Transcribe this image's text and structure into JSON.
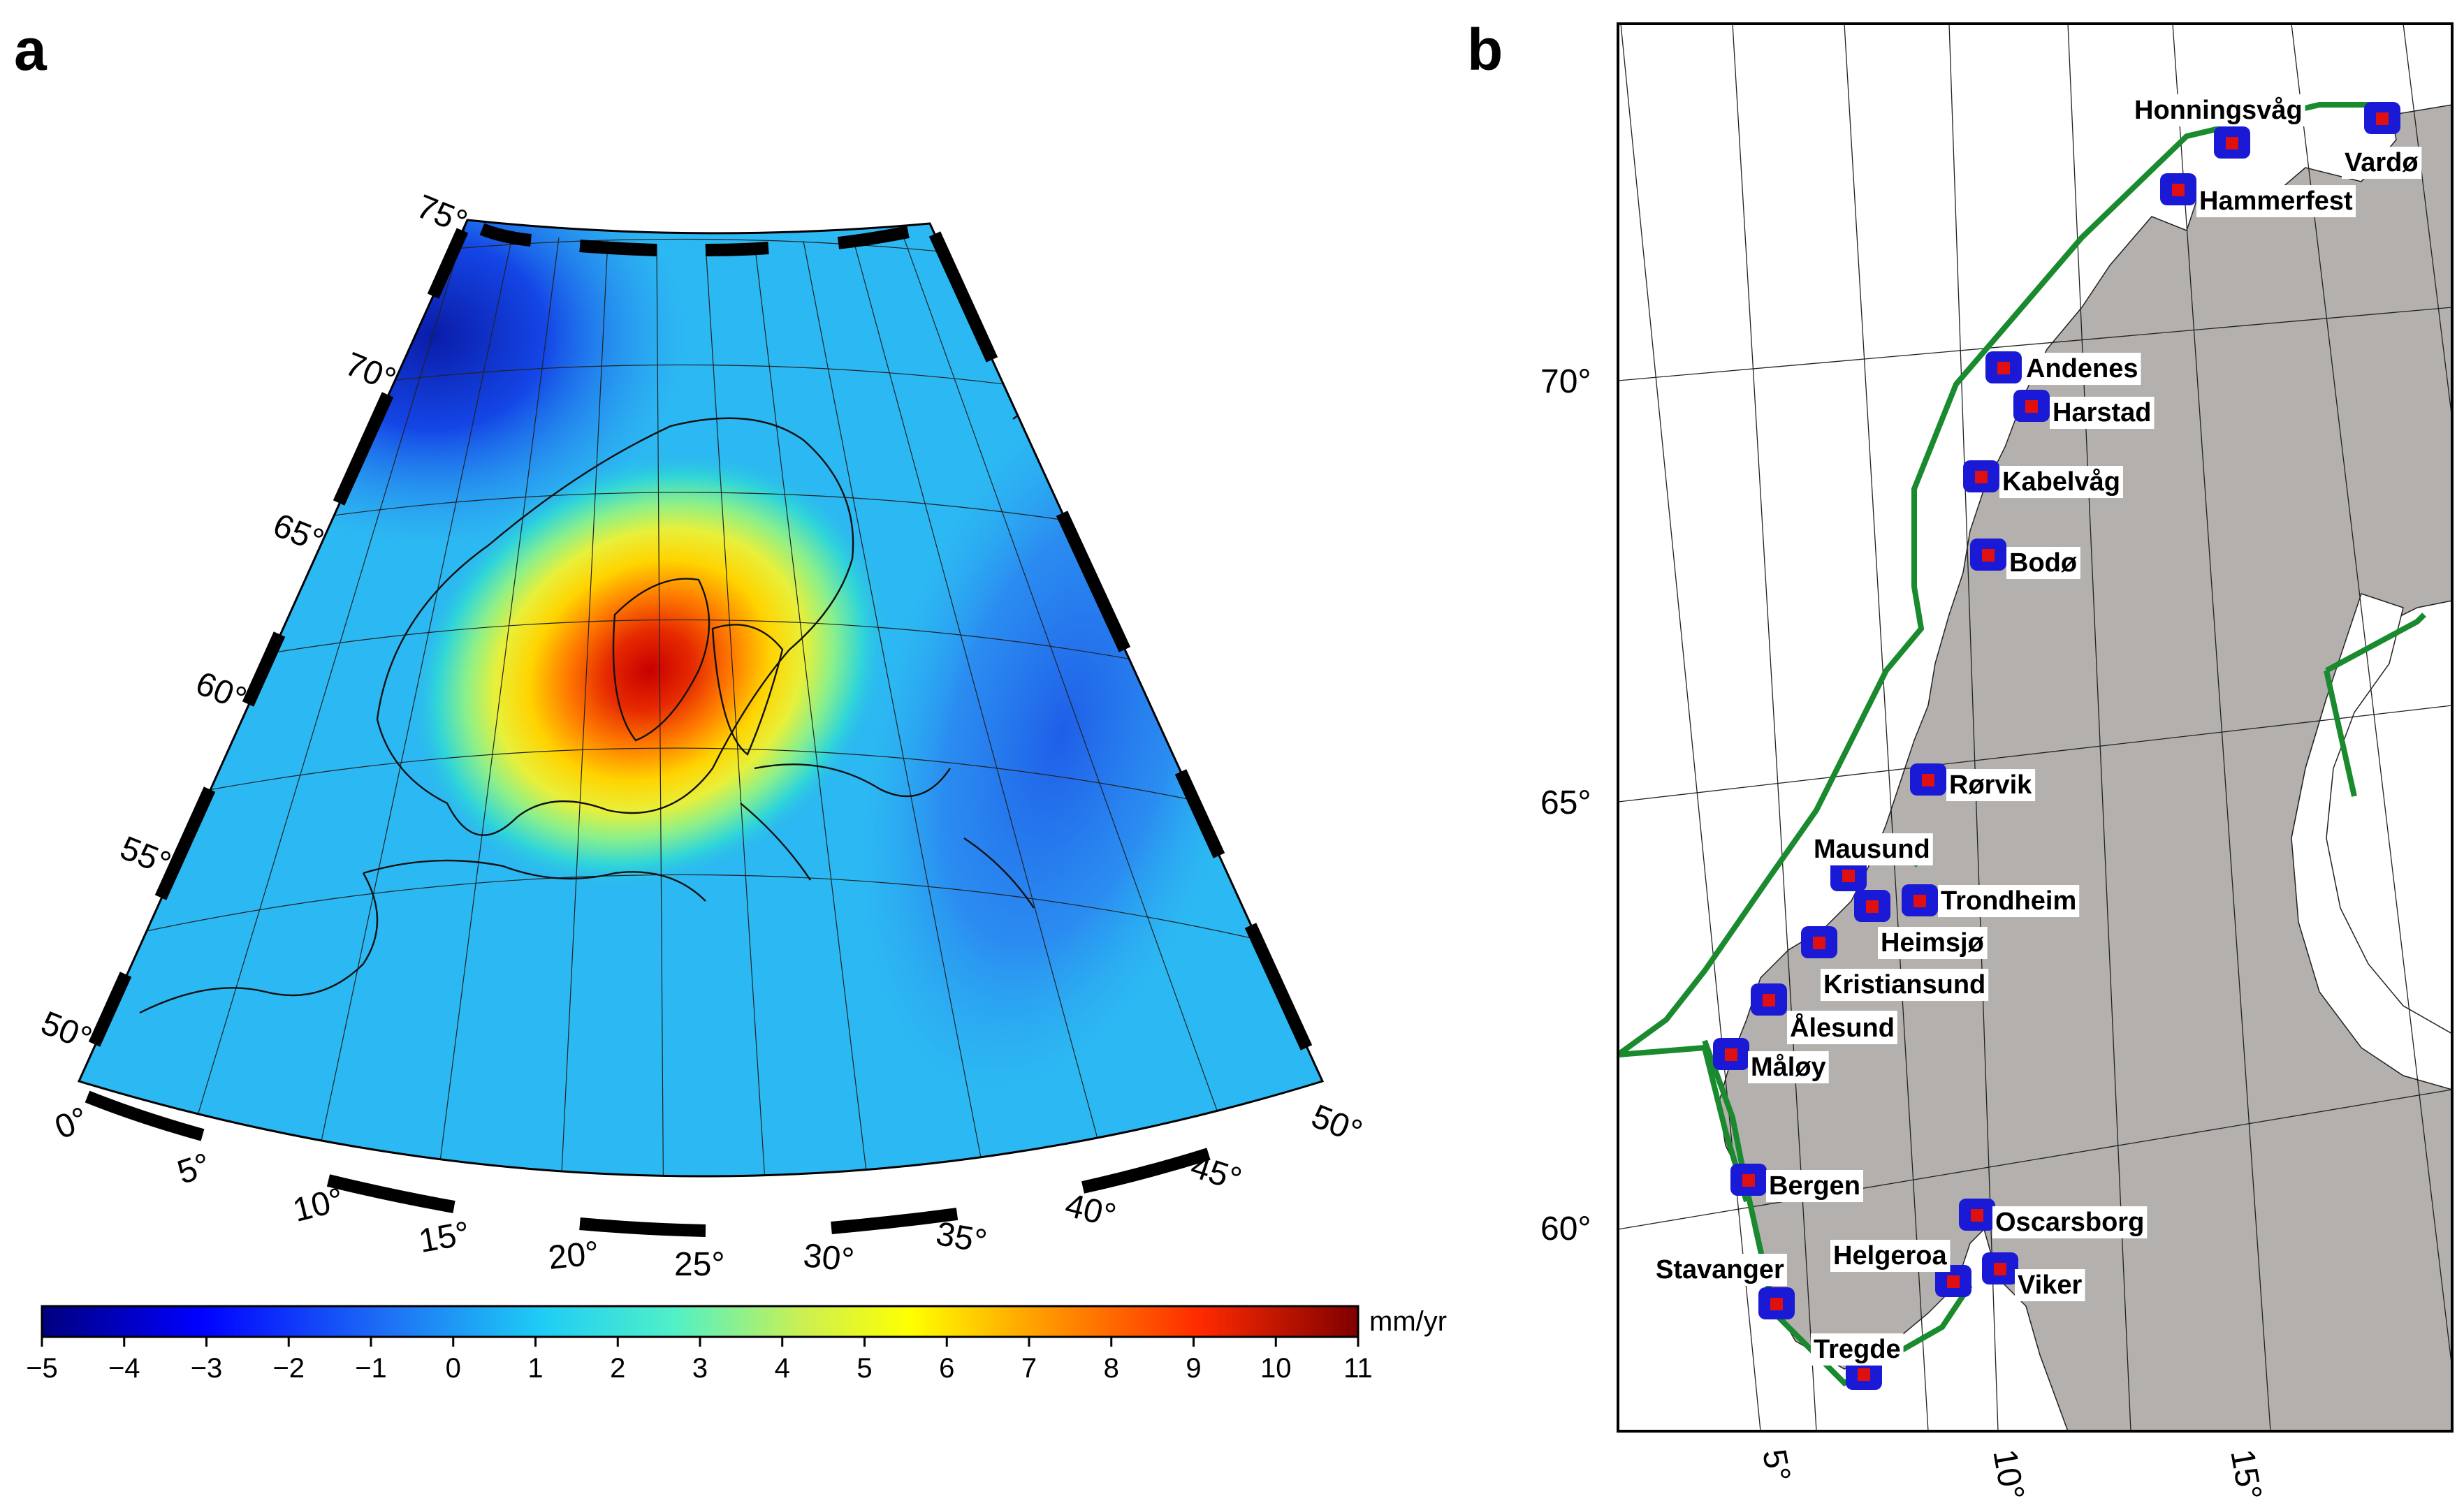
{
  "panel_a": {
    "letter": "a",
    "lat_labels": [
      "75°",
      "70°",
      "65°",
      "60°",
      "55°",
      "50°"
    ],
    "lon_labels": [
      "0°",
      "5°",
      "10°",
      "15°",
      "20°",
      "25°",
      "30°",
      "35°",
      "40°",
      "45°",
      "50°"
    ],
    "colorbar": {
      "ticks": [
        "−5",
        "−4",
        "−3",
        "−2",
        "−1",
        "0",
        "1",
        "2",
        "3",
        "4",
        "5",
        "6",
        "7",
        "8",
        "9",
        "10",
        "11"
      ],
      "units": "mm/yr",
      "min": -5,
      "max": 11
    }
  },
  "panel_b": {
    "letter": "b",
    "lat_labels": [
      "70°",
      "65°",
      "60°"
    ],
    "lon_labels": [
      "5°",
      "10°",
      "15°"
    ],
    "stations": [
      "Honningsvåg",
      "Vardø",
      "Hammerfest",
      "Andenes",
      "Harstad",
      "Kabelvåg",
      "Bodø",
      "Rørvik",
      "Mausund",
      "Trondheim",
      "Heimsjø",
      "Kristiansund",
      "Ålesund",
      "Måløy",
      "Bergen",
      "Oscarsborg",
      "Stavanger",
      "Helgeroa",
      "Viker",
      "Tregde"
    ]
  },
  "colors": {
    "land": "#b3b0ad",
    "boundary": "#1a8a2e",
    "station_cluster": "#1a1ad6",
    "station_marker": "#e01010"
  }
}
